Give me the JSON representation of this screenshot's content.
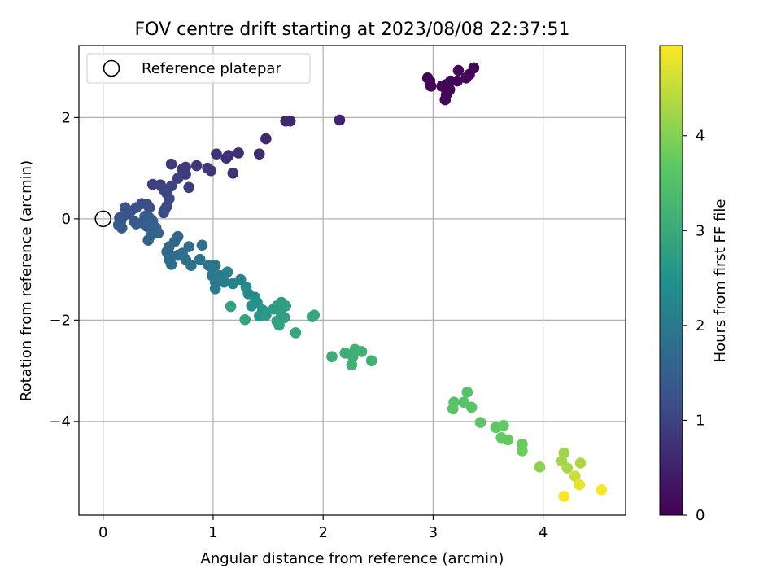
{
  "chart_data": {
    "type": "scatter",
    "title": "FOV centre drift starting at 2023/08/08 22:37:51",
    "xlabel": "Angular distance from reference (arcmin)",
    "ylabel": "Rotation from reference (arcmin)",
    "xlim": [
      -0.22,
      4.75
    ],
    "ylim": [
      -5.85,
      3.42
    ],
    "xticks": [
      0,
      1,
      2,
      3,
      4
    ],
    "yticks": [
      2,
      0,
      -2,
      -4
    ],
    "grid": true,
    "legend": {
      "placement": "top-left",
      "entries": [
        "Reference platepar"
      ]
    },
    "reference_point": {
      "x": 0,
      "y": 0
    },
    "colorbar": {
      "label": "Hours from first FF file",
      "colormap": "viridis",
      "range": [
        0,
        4.95
      ],
      "ticks": [
        0,
        1,
        2,
        3,
        4
      ]
    },
    "points": [
      {
        "x": 2.95,
        "y": 2.78,
        "h": 0.05
      },
      {
        "x": 2.97,
        "y": 2.72,
        "h": 0.05
      },
      {
        "x": 2.98,
        "y": 2.62,
        "h": 0.06
      },
      {
        "x": 3.08,
        "y": 2.62,
        "h": 0.06
      },
      {
        "x": 3.12,
        "y": 2.65,
        "h": 0.07
      },
      {
        "x": 3.15,
        "y": 2.55,
        "h": 0.07
      },
      {
        "x": 3.12,
        "y": 2.45,
        "h": 0.08
      },
      {
        "x": 3.11,
        "y": 2.35,
        "h": 0.08
      },
      {
        "x": 3.16,
        "y": 2.72,
        "h": 0.09
      },
      {
        "x": 3.22,
        "y": 2.72,
        "h": 0.09
      },
      {
        "x": 3.23,
        "y": 2.93,
        "h": 0.1
      },
      {
        "x": 3.3,
        "y": 2.78,
        "h": 0.1
      },
      {
        "x": 3.33,
        "y": 2.85,
        "h": 0.11
      },
      {
        "x": 3.37,
        "y": 2.98,
        "h": 0.12
      },
      {
        "x": 2.15,
        "y": 1.95,
        "h": 0.55
      },
      {
        "x": 1.7,
        "y": 1.93,
        "h": 0.57
      },
      {
        "x": 1.66,
        "y": 1.93,
        "h": 0.58
      },
      {
        "x": 1.48,
        "y": 1.58,
        "h": 0.62
      },
      {
        "x": 1.42,
        "y": 1.28,
        "h": 0.66
      },
      {
        "x": 1.23,
        "y": 1.3,
        "h": 0.7
      },
      {
        "x": 1.14,
        "y": 1.25,
        "h": 0.72
      },
      {
        "x": 1.12,
        "y": 1.2,
        "h": 0.74
      },
      {
        "x": 1.03,
        "y": 1.28,
        "h": 0.76
      },
      {
        "x": 1.18,
        "y": 0.9,
        "h": 0.78
      },
      {
        "x": 0.98,
        "y": 0.95,
        "h": 0.8
      },
      {
        "x": 0.95,
        "y": 1.0,
        "h": 0.82
      },
      {
        "x": 0.85,
        "y": 1.05,
        "h": 0.84
      },
      {
        "x": 0.75,
        "y": 1.02,
        "h": 0.86
      },
      {
        "x": 0.72,
        "y": 0.98,
        "h": 0.88
      },
      {
        "x": 0.62,
        "y": 1.08,
        "h": 0.9
      },
      {
        "x": 0.75,
        "y": 0.88,
        "h": 0.92
      },
      {
        "x": 0.68,
        "y": 0.8,
        "h": 0.94
      },
      {
        "x": 0.78,
        "y": 0.62,
        "h": 0.96
      },
      {
        "x": 0.45,
        "y": 0.68,
        "h": 0.98
      },
      {
        "x": 0.52,
        "y": 0.67,
        "h": 1.0
      },
      {
        "x": 0.62,
        "y": 0.65,
        "h": 1.02
      },
      {
        "x": 0.55,
        "y": 0.58,
        "h": 1.04
      },
      {
        "x": 0.58,
        "y": 0.5,
        "h": 1.06
      },
      {
        "x": 0.6,
        "y": 0.4,
        "h": 1.08
      },
      {
        "x": 0.58,
        "y": 0.25,
        "h": 1.1
      },
      {
        "x": 0.56,
        "y": 0.18,
        "h": 1.12
      },
      {
        "x": 0.55,
        "y": 0.12,
        "h": 1.14
      },
      {
        "x": 0.42,
        "y": 0.22,
        "h": 1.16
      },
      {
        "x": 0.35,
        "y": 0.3,
        "h": 1.18
      },
      {
        "x": 0.4,
        "y": 0.28,
        "h": 1.2
      },
      {
        "x": 0.3,
        "y": 0.22,
        "h": 1.22
      },
      {
        "x": 0.25,
        "y": 0.15,
        "h": 1.24
      },
      {
        "x": 0.2,
        "y": 0.22,
        "h": 1.26
      },
      {
        "x": 0.22,
        "y": 0.1,
        "h": 1.28
      },
      {
        "x": 0.18,
        "y": 0.05,
        "h": 1.3
      },
      {
        "x": 0.15,
        "y": 0.02,
        "h": 1.32
      },
      {
        "x": 0.16,
        "y": -0.05,
        "h": 1.34
      },
      {
        "x": 0.14,
        "y": -0.12,
        "h": 1.36
      },
      {
        "x": 0.17,
        "y": -0.18,
        "h": 1.38
      },
      {
        "x": 0.28,
        "y": -0.05,
        "h": 1.4
      },
      {
        "x": 0.3,
        "y": -0.1,
        "h": 1.42
      },
      {
        "x": 0.35,
        "y": -0.08,
        "h": 1.44
      },
      {
        "x": 0.38,
        "y": 0.05,
        "h": 1.46
      },
      {
        "x": 0.42,
        "y": 0.02,
        "h": 1.48
      },
      {
        "x": 0.45,
        "y": -0.05,
        "h": 1.5
      },
      {
        "x": 0.4,
        "y": -0.15,
        "h": 1.52
      },
      {
        "x": 0.48,
        "y": -0.18,
        "h": 1.54
      },
      {
        "x": 0.5,
        "y": -0.28,
        "h": 1.56
      },
      {
        "x": 0.44,
        "y": -0.32,
        "h": 1.58
      },
      {
        "x": 0.41,
        "y": -0.42,
        "h": 1.6
      },
      {
        "x": 0.68,
        "y": -0.35,
        "h": 1.62
      },
      {
        "x": 0.65,
        "y": -0.45,
        "h": 1.64
      },
      {
        "x": 0.6,
        "y": -0.55,
        "h": 1.66
      },
      {
        "x": 0.58,
        "y": -0.65,
        "h": 1.68
      },
      {
        "x": 0.62,
        "y": -0.75,
        "h": 1.7
      },
      {
        "x": 0.6,
        "y": -0.8,
        "h": 1.72
      },
      {
        "x": 0.62,
        "y": -0.9,
        "h": 1.74
      },
      {
        "x": 0.68,
        "y": -0.72,
        "h": 1.76
      },
      {
        "x": 0.72,
        "y": -0.68,
        "h": 1.78
      },
      {
        "x": 0.78,
        "y": -0.55,
        "h": 1.8
      },
      {
        "x": 0.75,
        "y": -0.8,
        "h": 1.82
      },
      {
        "x": 0.8,
        "y": -0.92,
        "h": 1.84
      },
      {
        "x": 0.9,
        "y": -0.52,
        "h": 1.86
      },
      {
        "x": 0.88,
        "y": -0.8,
        "h": 1.88
      },
      {
        "x": 0.96,
        "y": -0.92,
        "h": 1.9
      },
      {
        "x": 1.0,
        "y": -1.0,
        "h": 1.92
      },
      {
        "x": 1.02,
        "y": -0.92,
        "h": 1.94
      },
      {
        "x": 0.99,
        "y": -1.12,
        "h": 1.96
      },
      {
        "x": 1.02,
        "y": -1.25,
        "h": 1.98
      },
      {
        "x": 1.02,
        "y": -1.38,
        "h": 2.0
      },
      {
        "x": 1.06,
        "y": -1.12,
        "h": 2.05
      },
      {
        "x": 1.1,
        "y": -1.25,
        "h": 2.1
      },
      {
        "x": 1.13,
        "y": -1.05,
        "h": 2.15
      },
      {
        "x": 1.18,
        "y": -1.28,
        "h": 2.2
      },
      {
        "x": 1.25,
        "y": -1.2,
        "h": 2.25
      },
      {
        "x": 1.3,
        "y": -1.35,
        "h": 2.3
      },
      {
        "x": 1.32,
        "y": -1.48,
        "h": 2.35
      },
      {
        "x": 1.38,
        "y": -1.55,
        "h": 2.4
      },
      {
        "x": 1.35,
        "y": -1.72,
        "h": 2.45
      },
      {
        "x": 1.4,
        "y": -1.65,
        "h": 2.5
      },
      {
        "x": 1.45,
        "y": -1.8,
        "h": 2.55
      },
      {
        "x": 1.42,
        "y": -1.92,
        "h": 2.6
      },
      {
        "x": 1.48,
        "y": -1.9,
        "h": 2.65
      },
      {
        "x": 1.55,
        "y": -1.78,
        "h": 2.7
      },
      {
        "x": 1.58,
        "y": -1.72,
        "h": 2.72
      },
      {
        "x": 1.62,
        "y": -1.65,
        "h": 2.74
      },
      {
        "x": 1.66,
        "y": -1.72,
        "h": 2.76
      },
      {
        "x": 1.62,
        "y": -1.88,
        "h": 2.78
      },
      {
        "x": 1.65,
        "y": -1.95,
        "h": 2.8
      },
      {
        "x": 1.58,
        "y": -2.02,
        "h": 2.82
      },
      {
        "x": 1.6,
        "y": -2.1,
        "h": 2.84
      },
      {
        "x": 1.16,
        "y": -1.73,
        "h": 2.86
      },
      {
        "x": 1.29,
        "y": -1.99,
        "h": 2.88
      },
      {
        "x": 1.75,
        "y": -2.25,
        "h": 2.9
      },
      {
        "x": 1.9,
        "y": -1.93,
        "h": 2.92
      },
      {
        "x": 1.92,
        "y": -1.9,
        "h": 2.94
      },
      {
        "x": 2.08,
        "y": -2.72,
        "h": 3.05
      },
      {
        "x": 2.2,
        "y": -2.65,
        "h": 3.08
      },
      {
        "x": 2.27,
        "y": -2.72,
        "h": 3.1
      },
      {
        "x": 2.29,
        "y": -2.58,
        "h": 3.12
      },
      {
        "x": 2.35,
        "y": -2.62,
        "h": 3.14
      },
      {
        "x": 2.26,
        "y": -2.88,
        "h": 3.16
      },
      {
        "x": 2.44,
        "y": -2.8,
        "h": 3.18
      },
      {
        "x": 3.31,
        "y": -3.42,
        "h": 3.55
      },
      {
        "x": 3.19,
        "y": -3.62,
        "h": 3.57
      },
      {
        "x": 3.28,
        "y": -3.62,
        "h": 3.59
      },
      {
        "x": 3.35,
        "y": -3.72,
        "h": 3.61
      },
      {
        "x": 3.18,
        "y": -3.75,
        "h": 3.63
      },
      {
        "x": 3.43,
        "y": -4.02,
        "h": 3.65
      },
      {
        "x": 3.57,
        "y": -4.12,
        "h": 3.7
      },
      {
        "x": 3.64,
        "y": -4.08,
        "h": 3.72
      },
      {
        "x": 3.62,
        "y": -4.32,
        "h": 3.74
      },
      {
        "x": 3.68,
        "y": -4.36,
        "h": 3.76
      },
      {
        "x": 3.81,
        "y": -4.45,
        "h": 3.8
      },
      {
        "x": 3.81,
        "y": -4.58,
        "h": 3.82
      },
      {
        "x": 3.97,
        "y": -4.9,
        "h": 4.05
      },
      {
        "x": 4.19,
        "y": -4.62,
        "h": 4.2
      },
      {
        "x": 4.17,
        "y": -4.78,
        "h": 4.25
      },
      {
        "x": 4.22,
        "y": -4.92,
        "h": 4.3
      },
      {
        "x": 4.34,
        "y": -4.82,
        "h": 4.35
      },
      {
        "x": 4.29,
        "y": -5.08,
        "h": 4.55
      },
      {
        "x": 4.33,
        "y": -5.25,
        "h": 4.8
      },
      {
        "x": 4.19,
        "y": -5.48,
        "h": 4.92
      },
      {
        "x": 4.53,
        "y": -5.35,
        "h": 4.9
      }
    ]
  }
}
